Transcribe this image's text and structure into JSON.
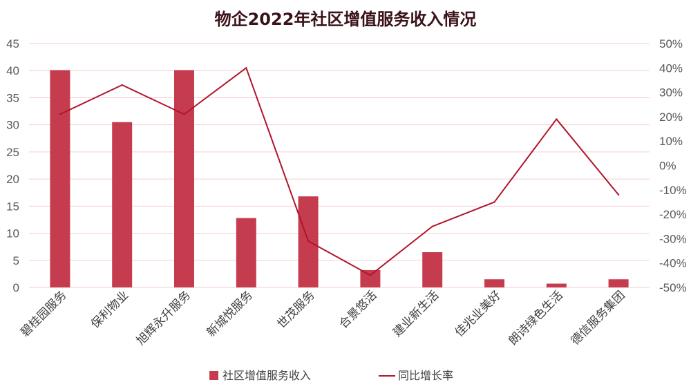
{
  "chart_data": {
    "type": "bar+line",
    "title": "物企2022年社区增值服务收入情况",
    "categories": [
      "碧桂园服务",
      "保利物业",
      "旭辉永升服务",
      "新城悦服务",
      "世茂服务",
      "合景悠活",
      "建业新生活",
      "佳兆业美好",
      "朗诗绿色生活",
      "德信服务集团"
    ],
    "series": [
      {
        "name": "社区增值服务收入",
        "type": "bar",
        "axis": "left",
        "color": "#c63c4f",
        "values": [
          40.1,
          30.5,
          40.1,
          12.8,
          16.8,
          3.2,
          6.5,
          1.5,
          0.7,
          1.5
        ]
      },
      {
        "name": "同比增长率",
        "type": "line",
        "axis": "right",
        "color": "#b0142a",
        "values": [
          21,
          33,
          21,
          40,
          -31,
          -45,
          -25,
          -15,
          19,
          -12
        ]
      }
    ],
    "y_left": {
      "min": 0,
      "max": 45,
      "ticks": [
        "0",
        "5",
        "10",
        "15",
        "20",
        "25",
        "30",
        "35",
        "40",
        "45"
      ]
    },
    "y_right": {
      "min": -50,
      "max": 50,
      "ticks": [
        "-50%",
        "-40%",
        "-30%",
        "-20%",
        "-10%",
        "0%",
        "10%",
        "20%",
        "30%",
        "40%",
        "50%"
      ]
    },
    "grid": true,
    "legend_position": "bottom"
  }
}
